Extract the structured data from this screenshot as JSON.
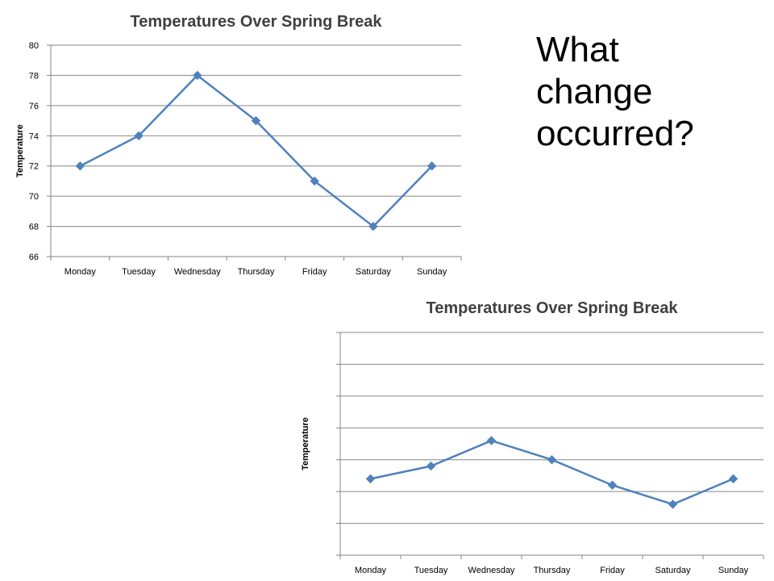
{
  "question": {
    "lines": [
      "What",
      "change",
      "occurred?"
    ]
  },
  "colors": {
    "series": "#4f81bd",
    "grid": "#868686",
    "text": "#000000",
    "title": "#404040"
  },
  "chart_data": [
    {
      "type": "line",
      "title": "Temperatures Over Spring Break",
      "xlabel": "",
      "ylabel": "Temperature",
      "categories": [
        "Monday",
        "Tuesday",
        "Wednesday",
        "Thursday",
        "Friday",
        "Saturday",
        "Sunday"
      ],
      "values": [
        72,
        74,
        78,
        75,
        71,
        68,
        72
      ],
      "ylim": [
        66,
        80
      ],
      "yticks": [
        66,
        68,
        70,
        72,
        74,
        76,
        78,
        80
      ],
      "show_y_tick_labels": true,
      "grid": true,
      "marker": "diamond"
    },
    {
      "type": "line",
      "title": "Temperatures Over Spring Break",
      "xlabel": "",
      "ylabel": "Temperature",
      "categories": [
        "Monday",
        "Tuesday",
        "Wednesday",
        "Thursday",
        "Friday",
        "Saturday",
        "Sunday"
      ],
      "values": [
        72,
        74,
        78,
        75,
        71,
        68,
        72
      ],
      "ylim": [
        60,
        95
      ],
      "yticks": [
        60,
        65,
        70,
        75,
        80,
        85,
        90,
        95
      ],
      "show_y_tick_labels": false,
      "grid": true,
      "marker": "diamond"
    }
  ]
}
